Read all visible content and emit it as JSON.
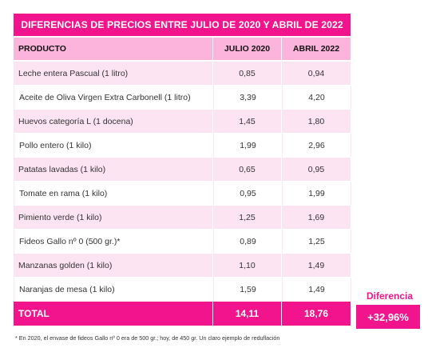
{
  "chart_data": {
    "type": "table",
    "title": "DIFERENCIAS DE PRECIOS ENTRE JULIO DE 2020 Y ABRIL DE 2022",
    "columns": [
      "PRODUCTO",
      "JULIO 2020",
      "ABRIL 2022"
    ],
    "rows": [
      {
        "product": "Leche entera Pascual (1 litro)",
        "jul2020": "0,85",
        "abr2022": "0,94"
      },
      {
        "product": "Aceite de Oliva Virgen Extra Carbonell (1 litro)",
        "jul2020": "3,39",
        "abr2022": "4,20"
      },
      {
        "product": "Huevos categoría L (1 docena)",
        "jul2020": "1,45",
        "abr2022": "1,80"
      },
      {
        "product": "Pollo entero (1 kilo)",
        "jul2020": "1,99",
        "abr2022": "2,96"
      },
      {
        "product": "Patatas lavadas (1 kilo)",
        "jul2020": "0,65",
        "abr2022": "0,95"
      },
      {
        "product": "Tomate en rama (1 kilo)",
        "jul2020": "0,95",
        "abr2022": "1,99"
      },
      {
        "product": "Pimiento verde (1 kilo)",
        "jul2020": "1,25",
        "abr2022": "1,69"
      },
      {
        "product": "Fideos Gallo nº 0 (500 gr.)*",
        "jul2020": "0,89",
        "abr2022": "1,25"
      },
      {
        "product": "Manzanas golden (1 kilo)",
        "jul2020": "1,10",
        "abr2022": "1,49"
      },
      {
        "product": "Naranjas de mesa (1 kilo)",
        "jul2020": "1,59",
        "abr2022": "1,49"
      }
    ],
    "total": {
      "label": "TOTAL",
      "jul2020": "14,11",
      "abr2022": "18,76"
    },
    "difference": {
      "label": "Diferencia",
      "value": "+32,96%"
    },
    "footnote": "* En 2020, el envase de fideos Gallo nº 0 era de 500 gr.; hoy, de 450 gr. Un claro ejemplo de reduflación"
  },
  "colors": {
    "accent": "#f2148c",
    "header_row": "#fcb4dc",
    "stripe": "#fde4f2"
  }
}
